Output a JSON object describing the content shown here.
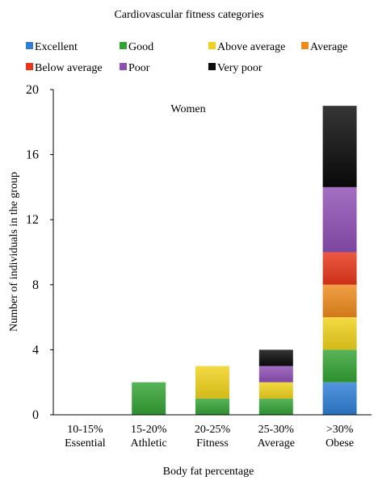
{
  "chart_data": {
    "type": "bar",
    "stacked": true,
    "legend_title": "Cardiovascular fitness categories",
    "annotation": "Women",
    "xlabel": "Body fat percentage",
    "ylabel": "Number of individuals in the group",
    "ylim": [
      0,
      20
    ],
    "yticks": [
      0,
      4,
      8,
      12,
      16,
      20
    ],
    "grid": false,
    "legend_position": "top",
    "categories": [
      [
        "10-15%",
        "Essential"
      ],
      [
        "15-20%",
        "Athletic"
      ],
      [
        "20-25%",
        "Fitness"
      ],
      [
        "25-30%",
        "Average"
      ],
      [
        ">30%",
        "Obese"
      ]
    ],
    "series": [
      {
        "name": "Excellent",
        "color": "#2f7fd6",
        "values": [
          0,
          0,
          0,
          0,
          2
        ]
      },
      {
        "name": "Good",
        "color": "#33a334",
        "values": [
          0,
          2,
          1,
          1,
          2
        ]
      },
      {
        "name": "Above average",
        "color": "#f0d21c",
        "values": [
          0,
          0,
          2,
          1,
          2
        ]
      },
      {
        "name": "Average",
        "color": "#ee8a1c",
        "values": [
          0,
          0,
          0,
          0,
          2
        ]
      },
      {
        "name": "Below average",
        "color": "#e8361a",
        "values": [
          0,
          0,
          0,
          0,
          2
        ]
      },
      {
        "name": "Poor",
        "color": "#8e4fb5",
        "values": [
          0,
          0,
          0,
          1,
          4
        ]
      },
      {
        "name": "Very poor",
        "color": "#0a0a0a",
        "values": [
          0,
          0,
          0,
          1,
          5
        ]
      }
    ]
  }
}
